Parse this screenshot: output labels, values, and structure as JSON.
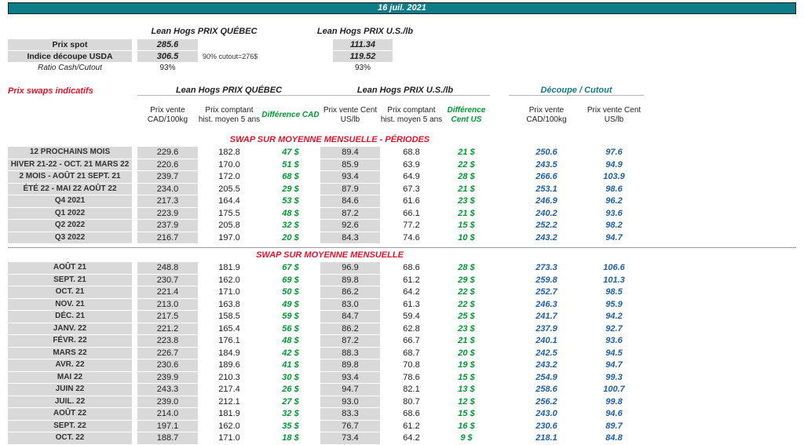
{
  "header": {
    "date": "16 juil. 2021"
  },
  "colors": {
    "teal": "#0d7d8a",
    "red": "#e8112d",
    "green": "#009933",
    "blue": "#1f5fa8",
    "cutteal": "#157a8d",
    "gray": "#d9d9d9"
  },
  "spot": {
    "quebec_title": "Lean Hogs PRIX QUÉBEC",
    "us_title": "Lean Hogs PRIX U.S./lb",
    "rows": [
      {
        "label": "Prix spot",
        "quebec": "285.6",
        "note": "",
        "us": "111.34"
      },
      {
        "label": "Indice découpe USDA",
        "quebec": "306.5",
        "note": "90% cutout=276$",
        "us": "119.52"
      },
      {
        "label": "Ratio Cash/Cutout",
        "quebec": "93%",
        "note": "",
        "us": "93%"
      }
    ]
  },
  "swaps": {
    "title": "Prix swaps indicatifs",
    "group_quebec": "Lean Hogs PRIX QUÉBEC",
    "group_us": "Lean Hogs PRIX U.S./lb",
    "group_cutout": "Découpe / Cutout",
    "columns": [
      "Prix vente CAD/100kg",
      "Prix comptant hist. moyen 5 ans",
      "Différence CAD",
      "Prix vente Cent US/lb",
      "Prix comptant hist. moyen 5 ans",
      "Différence Cent US",
      "Prix vente CAD/100kg",
      "Prix vente Cent US/lb"
    ],
    "sections": [
      {
        "title": "SWAP SUR MOYENNE MENSUELLE - PÉRIODES",
        "rows": [
          {
            "label": "12 PROCHAINS MOIS",
            "values": [
              "229.6",
              "182.8",
              "47 $",
              "89.4",
              "68.8",
              "21 $",
              "250.6",
              "97.6"
            ]
          },
          {
            "label": "HIVER 21-22 - OCT. 21 MARS 22",
            "values": [
              "220.6",
              "170.0",
              "51 $",
              "85.9",
              "63.9",
              "22 $",
              "243.5",
              "94.9"
            ]
          },
          {
            "label": "2 MOIS - AOÛT 21 SEPT. 21",
            "values": [
              "239.7",
              "172.0",
              "68 $",
              "93.4",
              "64.9",
              "28 $",
              "266.6",
              "103.9"
            ]
          },
          {
            "label": "ÉTÉ 22 - MAI 22 AOÛT 22",
            "values": [
              "234.0",
              "205.5",
              "29 $",
              "87.9",
              "67.3",
              "21 $",
              "253.1",
              "98.6"
            ]
          },
          {
            "label": "Q4 2021",
            "values": [
              "217.3",
              "164.4",
              "53 $",
              "84.6",
              "61.6",
              "23 $",
              "246.9",
              "96.2"
            ]
          },
          {
            "label": "Q1 2022",
            "values": [
              "223.9",
              "175.5",
              "48 $",
              "87.2",
              "66.1",
              "21 $",
              "240.2",
              "93.6"
            ]
          },
          {
            "label": "Q2 2022",
            "values": [
              "237.9",
              "205.8",
              "32 $",
              "92.6",
              "77.2",
              "15 $",
              "252.2",
              "98.2"
            ]
          },
          {
            "label": "Q3 2022",
            "values": [
              "216.7",
              "197.0",
              "20 $",
              "84.3",
              "74.6",
              "10 $",
              "243.2",
              "94.7"
            ]
          }
        ]
      },
      {
        "title": "SWAP SUR MOYENNE MENSUELLE",
        "rows": [
          {
            "label": "AOÛT 21",
            "values": [
              "248.8",
              "181.9",
              "67 $",
              "96.9",
              "68.6",
              "28 $",
              "273.3",
              "106.6"
            ]
          },
          {
            "label": "SEPT. 21",
            "values": [
              "230.7",
              "162.0",
              "69 $",
              "89.8",
              "61.2",
              "29 $",
              "259.8",
              "101.3"
            ]
          },
          {
            "label": "OCT. 21",
            "values": [
              "221.4",
              "171.0",
              "50 $",
              "86.2",
              "64.2",
              "22 $",
              "252.7",
              "98.5"
            ]
          },
          {
            "label": "NOV. 21",
            "values": [
              "213.0",
              "163.8",
              "49 $",
              "83.0",
              "61.3",
              "22 $",
              "246.3",
              "95.9"
            ]
          },
          {
            "label": "DÉC. 21",
            "values": [
              "217.5",
              "158.5",
              "59 $",
              "84.7",
              "59.4",
              "25 $",
              "241.7",
              "94.2"
            ]
          },
          {
            "label": "JANV. 22",
            "values": [
              "221.2",
              "165.4",
              "56 $",
              "86.2",
              "62.8",
              "23 $",
              "237.9",
              "92.7"
            ]
          },
          {
            "label": "FÉVR. 22",
            "values": [
              "223.8",
              "176.1",
              "48 $",
              "87.2",
              "66.7",
              "21 $",
              "240.1",
              "93.6"
            ]
          },
          {
            "label": "MARS 22",
            "values": [
              "226.7",
              "184.9",
              "42 $",
              "88.3",
              "68.7",
              "20 $",
              "242.5",
              "94.5"
            ]
          },
          {
            "label": "AVR. 22",
            "values": [
              "230.6",
              "189.6",
              "41 $",
              "89.8",
              "70.8",
              "19 $",
              "243.2",
              "94.7"
            ]
          },
          {
            "label": "MAI 22",
            "values": [
              "239.9",
              "210.3",
              "30 $",
              "93.4",
              "78.6",
              "15 $",
              "254.9",
              "99.3"
            ]
          },
          {
            "label": "JUIN 22",
            "values": [
              "243.3",
              "217.4",
              "26 $",
              "94.7",
              "82.1",
              "13 $",
              "258.6",
              "100.7"
            ]
          },
          {
            "label": "JUIL. 22",
            "values": [
              "239.0",
              "212.1",
              "27 $",
              "93.0",
              "80.7",
              "12 $",
              "256.2",
              "99.8"
            ]
          },
          {
            "label": "AOÛT 22",
            "values": [
              "214.0",
              "181.9",
              "32 $",
              "83.3",
              "68.6",
              "15 $",
              "243.0",
              "94.6"
            ]
          },
          {
            "label": "SEPT. 22",
            "values": [
              "197.1",
              "162.0",
              "35 $",
              "76.7",
              "61.2",
              "16 $",
              "230.6",
              "89.7"
            ]
          },
          {
            "label": "OCT. 22",
            "values": [
              "188.7",
              "171.0",
              "18 $",
              "73.4",
              "64.2",
              "9 $",
              "218.1",
              "84.8"
            ]
          }
        ]
      }
    ]
  }
}
